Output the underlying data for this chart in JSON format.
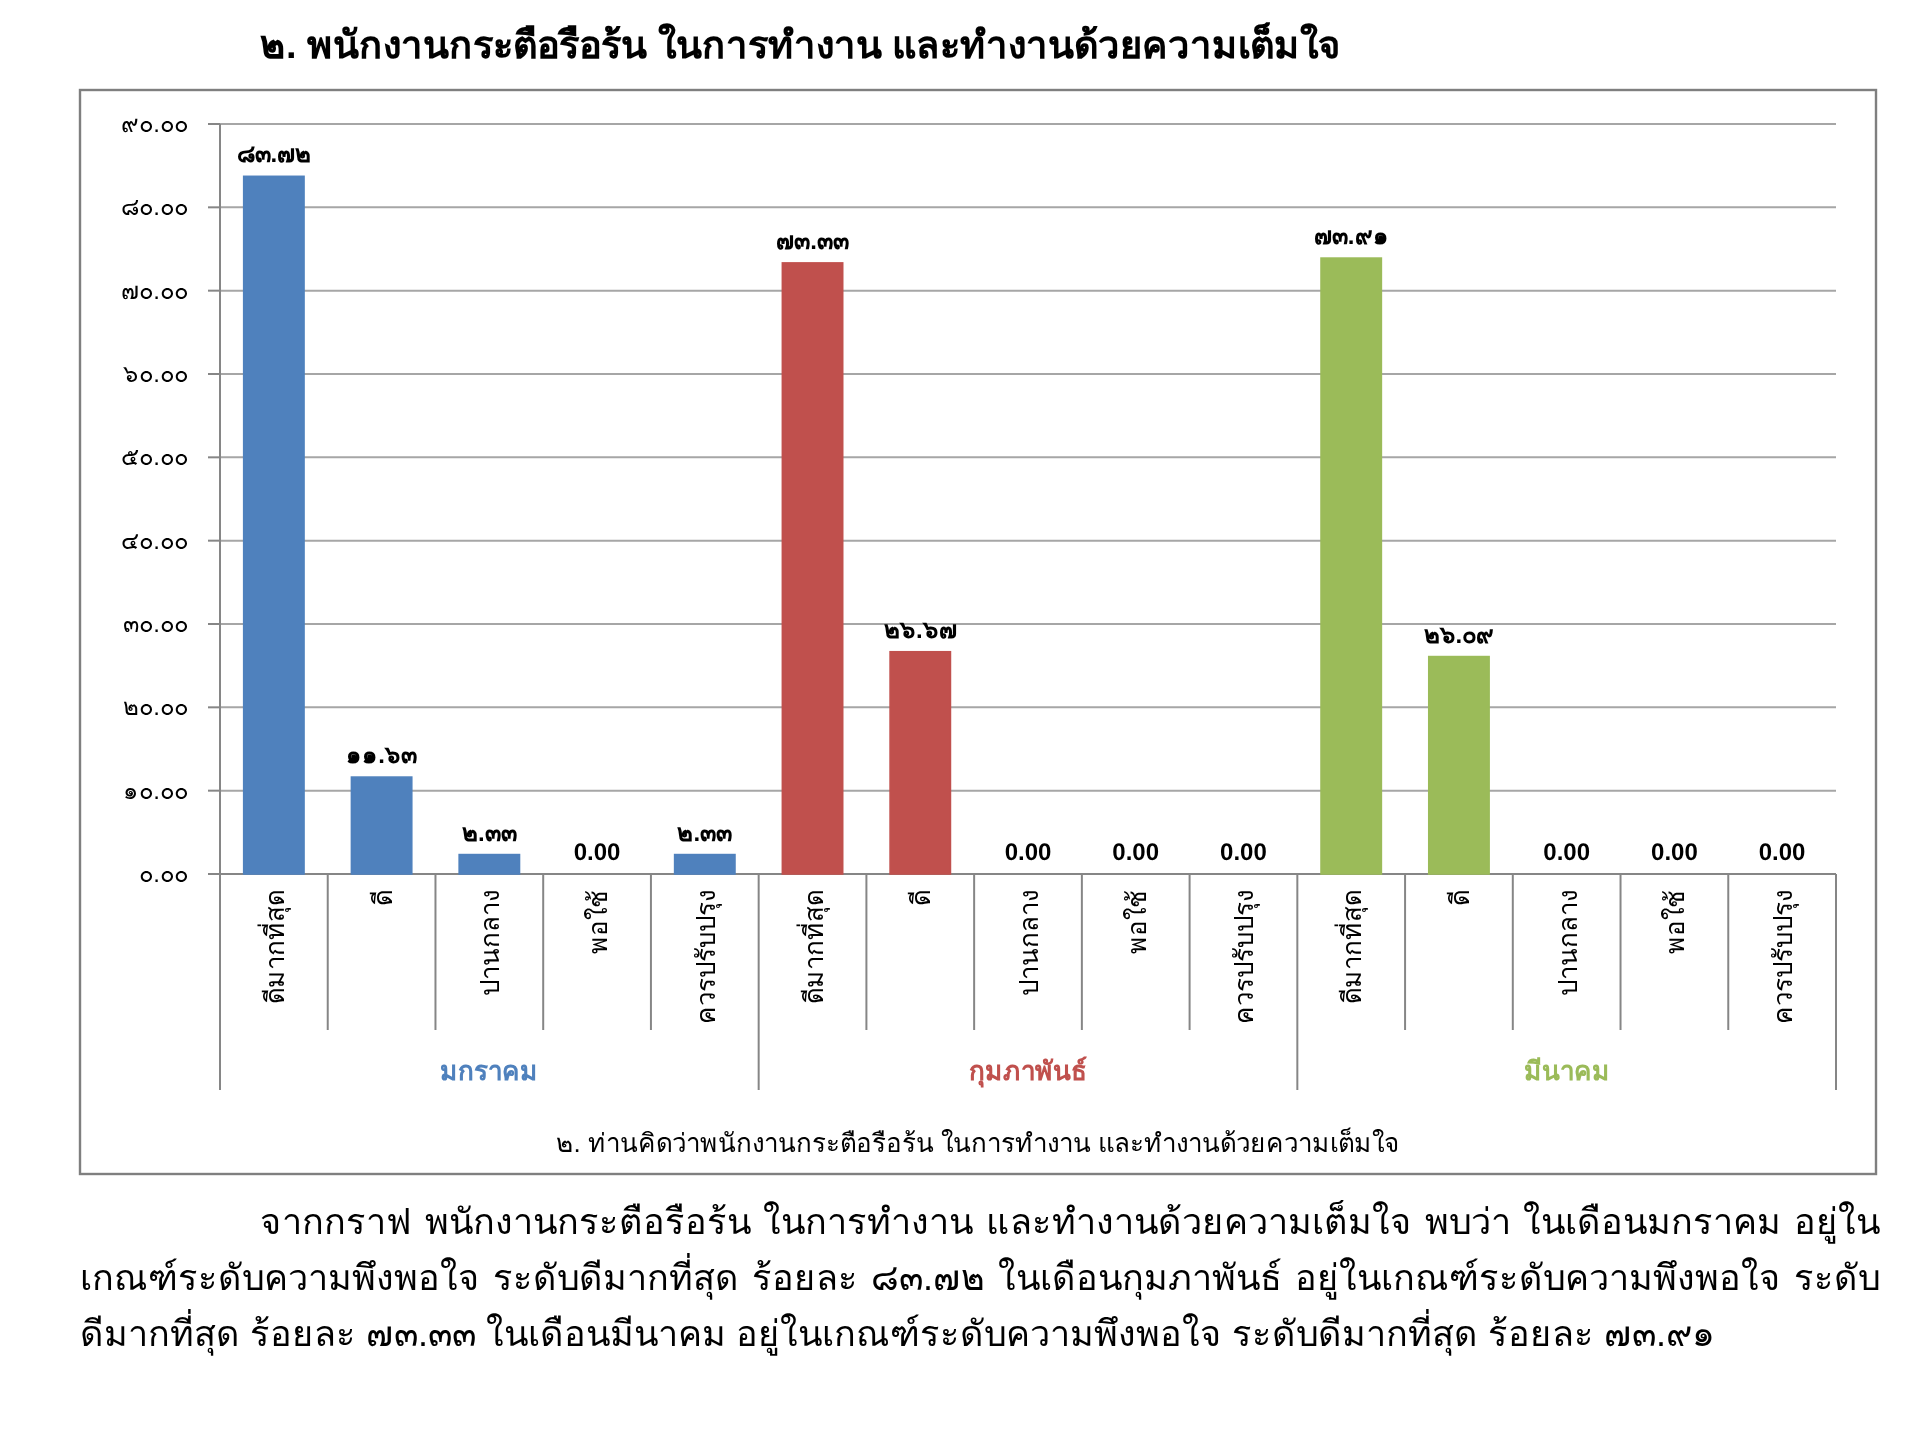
{
  "chart_data": {
    "type": "bar",
    "title": "๒. พนักงานกระตือรือร้น ในการทำงาน และทำงานด้วยความเต็มใจ",
    "xlabel": "๒. ท่านคิดว่าพนักงานกระตือรือร้น ในการทำงาน และทำงานด้วยความเต็มใจ",
    "categories": [
      "ดีมากที่สุด",
      "ดี",
      "ปานกลาง",
      "พอใช้",
      "ควรปรับปรุง",
      "ดีมากที่สุด",
      "ดี",
      "ปานกลาง",
      "พอใช้",
      "ควรปรับปรุง",
      "ดีมากที่สุด",
      "ดี",
      "ปานกลาง",
      "พอใช้",
      "ควรปรับปรุง"
    ],
    "series": [
      {
        "name": "มกราคม",
        "color": "#4f81bd",
        "values": [
          83.72,
          11.63,
          2.33,
          0,
          2.33,
          null,
          null,
          null,
          null,
          null,
          null,
          null,
          null,
          null,
          null
        ],
        "value_labels": [
          "๘๓.๗๒",
          "๑๑.๖๓",
          "๒.๓๓",
          "0.00",
          "๒.๓๓",
          null,
          null,
          null,
          null,
          null,
          null,
          null,
          null,
          null,
          null
        ]
      },
      {
        "name": "กุมภาพันธ์",
        "color": "#c0504d",
        "values": [
          null,
          null,
          null,
          null,
          null,
          73.33,
          26.67,
          0,
          0,
          0,
          null,
          null,
          null,
          null,
          null
        ],
        "value_labels": [
          null,
          null,
          null,
          null,
          null,
          "๗๓.๓๓",
          "๒๖.๖๗",
          "0.00",
          "0.00",
          "0.00",
          null,
          null,
          null,
          null,
          null
        ]
      },
      {
        "name": "มีนาคม",
        "color": "#9bbb59",
        "values": [
          null,
          null,
          null,
          null,
          null,
          null,
          null,
          null,
          null,
          null,
          73.91,
          26.09,
          0,
          0,
          0
        ],
        "value_labels": [
          null,
          null,
          null,
          null,
          null,
          null,
          null,
          null,
          null,
          null,
          "๗๓.๙๑",
          "๒๖.๐๙",
          "0.00",
          "0.00",
          "0.00"
        ]
      }
    ],
    "ylim": [
      0,
      90
    ],
    "yticks": [
      {
        "value": 0,
        "label": "๐.๐๐"
      },
      {
        "value": 10,
        "label": "๑๐.๐๐"
      },
      {
        "value": 20,
        "label": "๒๐.๐๐"
      },
      {
        "value": 30,
        "label": "๓๐.๐๐"
      },
      {
        "value": 40,
        "label": "๔๐.๐๐"
      },
      {
        "value": 50,
        "label": "๕๐.๐๐"
      },
      {
        "value": 60,
        "label": "๖๐.๐๐"
      },
      {
        "value": 70,
        "label": "๗๐.๐๐"
      },
      {
        "value": 80,
        "label": "๘๐.๐๐"
      },
      {
        "value": 90,
        "label": "๙๐.๐๐"
      }
    ],
    "grid": "y",
    "annotations": [
      "จากกราฟ พนักงานกระตือรือร้น ในการทำงาน และทำงานด้วยความเต็มใจ พบว่า ในเดือนมกราคม อยู่ในเกณฑ์ระดับความพึงพอใจ ระดับดีมากที่สุด ร้อยละ ๘๓.๗๒  ในเดือนกุมภาพันธ์ อยู่ในเกณฑ์ระดับความพึงพอใจ ระดับดีมากที่สุด ร้อยละ ๗๓.๓๓ ในเดือนมีนาคม อยู่ในเกณฑ์ระดับความพึงพอใจ ระดับดีมากที่สุด ร้อยละ ๗๓.๙๑"
    ]
  }
}
